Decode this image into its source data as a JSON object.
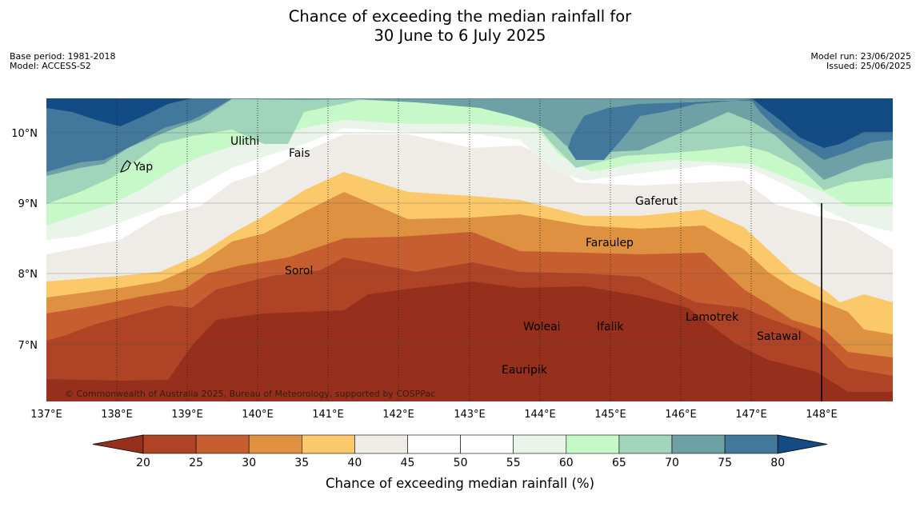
{
  "title": {
    "line1": "Chance of exceeding the median rainfall for",
    "line2": "30 June to 6 July 2025"
  },
  "meta": {
    "base_period": "Base period: 1981-2018",
    "model": "Model: ACCESS-S2",
    "model_run": "Model run: 23/06/2025",
    "issued": "Issued: 25/06/2025"
  },
  "map": {
    "lon_labels": [
      "137°E",
      "138°E",
      "139°E",
      "140°E",
      "141°E",
      "142°E",
      "143°E",
      "144°E",
      "145°E",
      "146°E",
      "147°E",
      "148°E"
    ],
    "lat_labels": [
      "10°N",
      "9°N",
      "8°N",
      "7°N"
    ],
    "places": [
      "Yap",
      "Ulithi",
      "Fais",
      "Gaferut",
      "Faraulep",
      "Sorol",
      "Woleai",
      "Ifalik",
      "Lamotrek",
      "Satawal",
      "Eauripik"
    ],
    "copyright": "© Commonwealth of Australia 2025, Bureau of Meteorology, supported by COSPPac"
  },
  "colorbar": {
    "ticks": [
      "20",
      "25",
      "30",
      "35",
      "40",
      "45",
      "50",
      "55",
      "60",
      "65",
      "70",
      "75",
      "80"
    ],
    "colors": [
      "#962f1c",
      "#ae4325",
      "#c75e2f",
      "#de9141",
      "#fbc96a",
      "#efebe6",
      "#ffffff",
      "#ffffff",
      "#ebf4ea",
      "#c7f9c8",
      "#a0d4bb",
      "#6ea1a5",
      "#41789b",
      "#134c84"
    ],
    "label": "Chance of exceeding median rainfall (%)"
  }
}
